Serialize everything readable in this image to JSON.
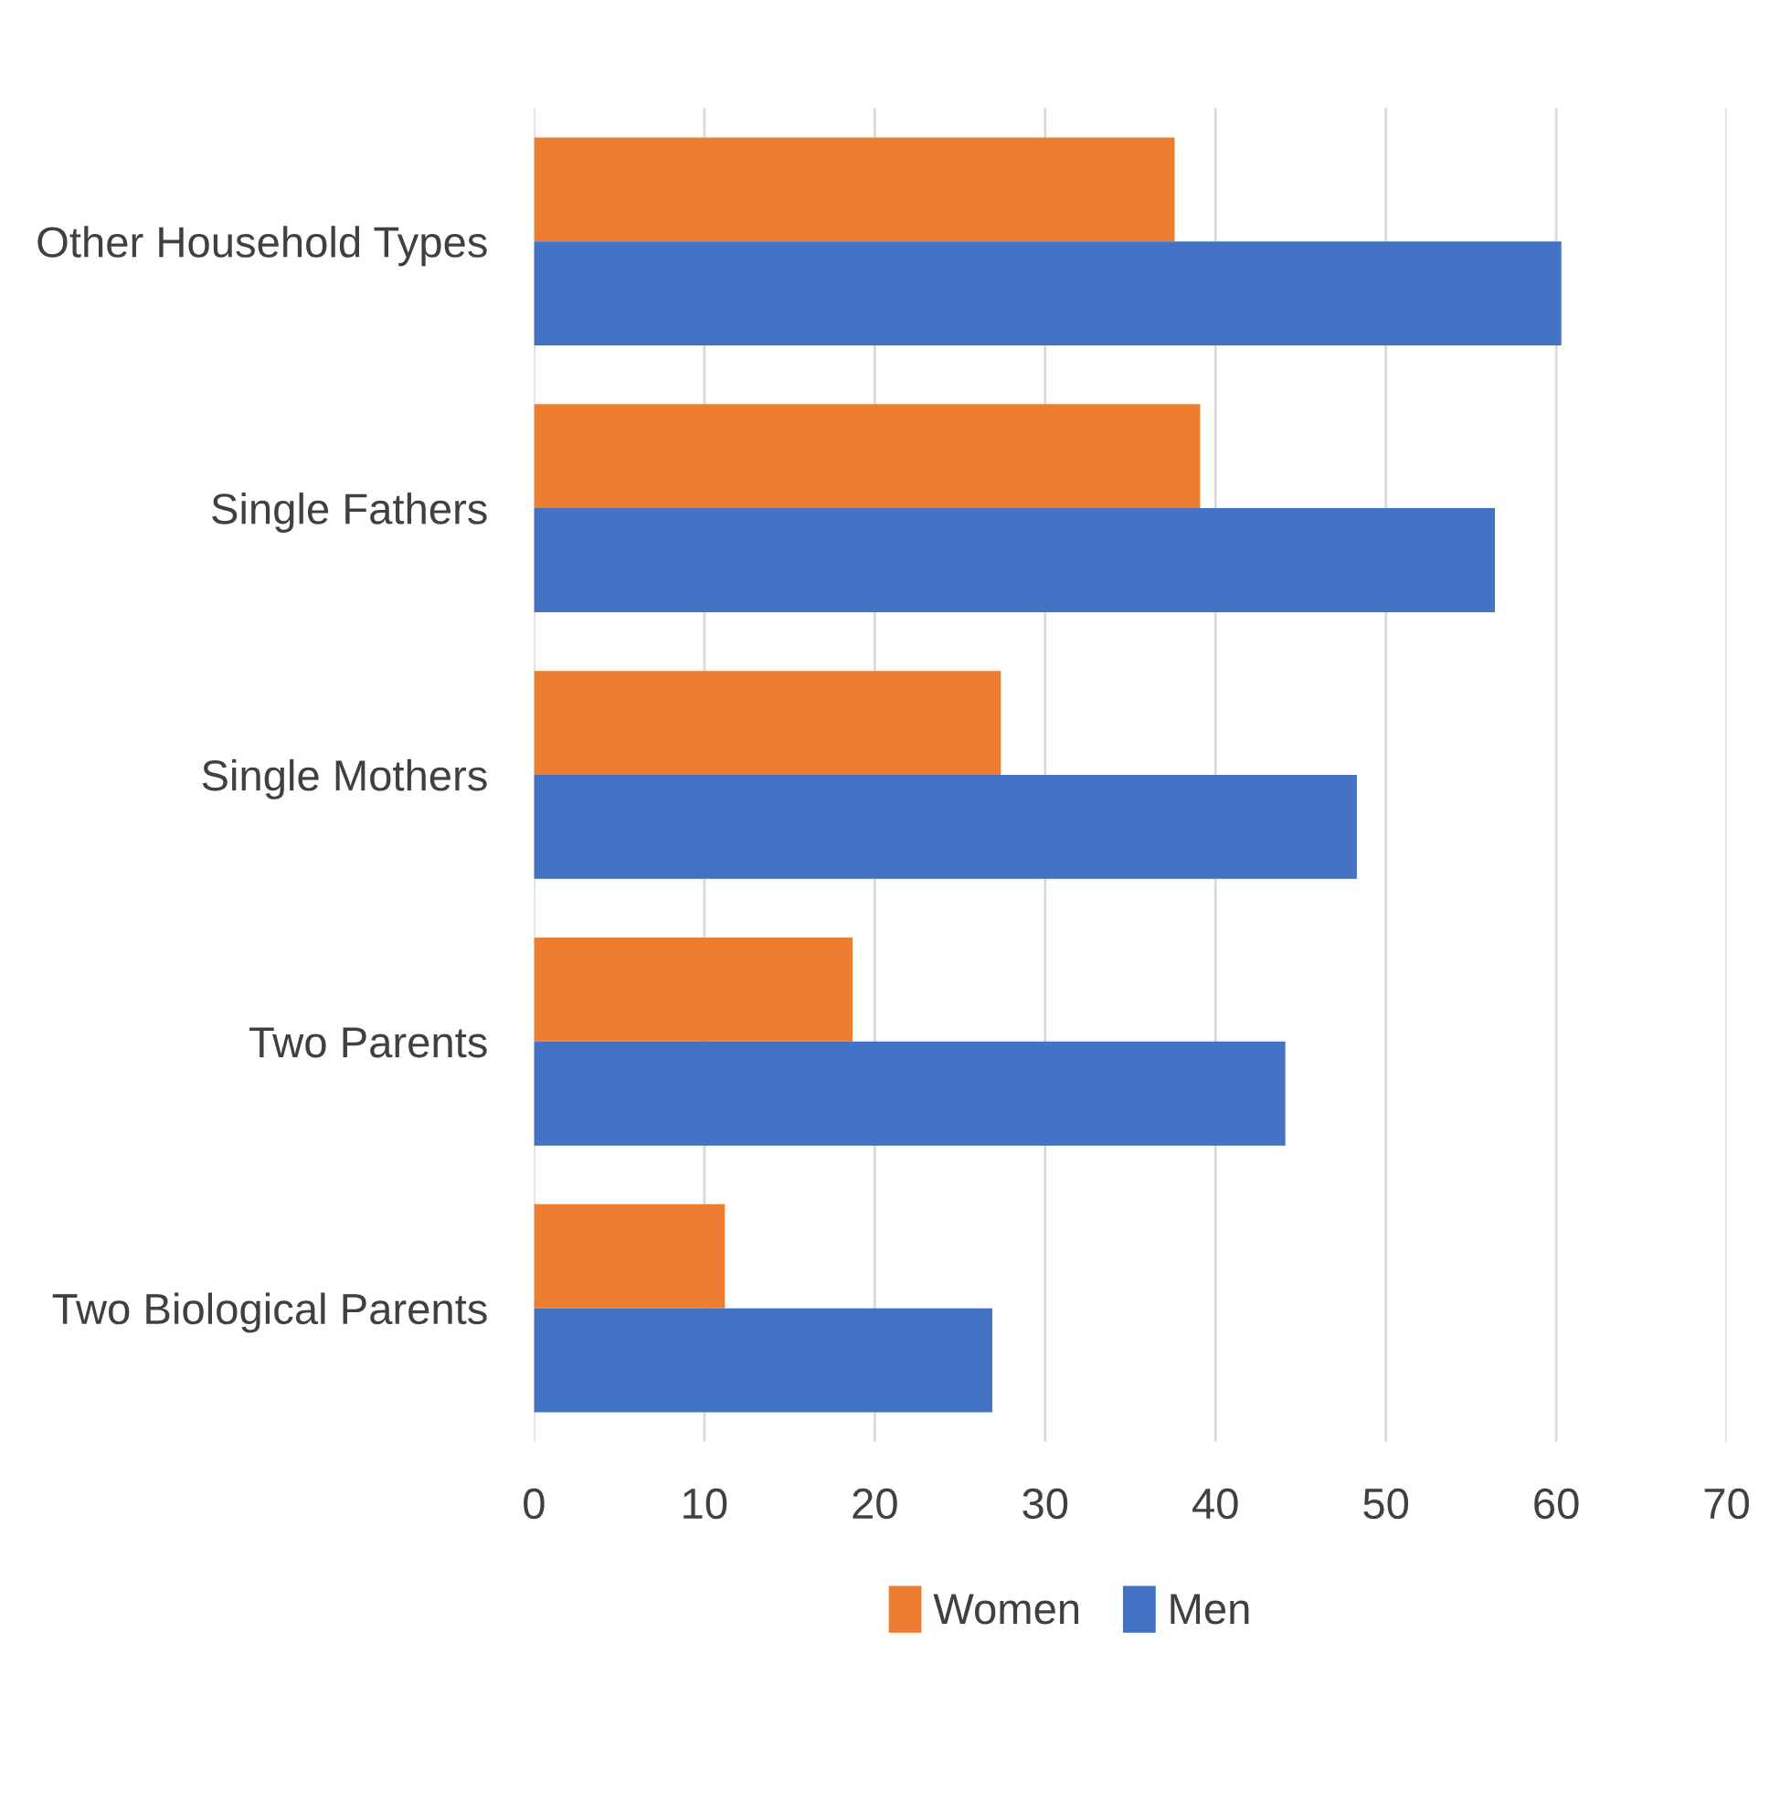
{
  "chart_data": {
    "type": "bar",
    "orientation": "horizontal",
    "categories": [
      "Other Household Types",
      "Single Fathers",
      "Single Mothers",
      "Two Parents",
      "Two Biological Parents"
    ],
    "series": [
      {
        "name": "Women",
        "color": "#ed7d31",
        "values": [
          37.6,
          39.1,
          27.4,
          18.7,
          11.2
        ]
      },
      {
        "name": "Men",
        "color": "#4472c4",
        "values": [
          60.3,
          56.4,
          48.3,
          44.1,
          26.9
        ]
      }
    ],
    "xlim": [
      0,
      70
    ],
    "xticks": [
      0,
      10,
      20,
      30,
      40,
      50,
      60,
      70
    ],
    "grid": "x",
    "legend": "bottom"
  }
}
